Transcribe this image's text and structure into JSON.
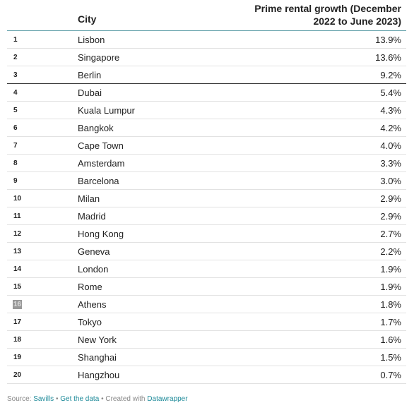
{
  "table": {
    "header": {
      "rank": "",
      "city": "City",
      "value": "Prime rental growth (December 2022 to June 2023)"
    },
    "rows": [
      [
        "1",
        "Lisbon",
        "13.9%"
      ],
      [
        "2",
        "Singapore",
        "13.6%"
      ],
      [
        "3",
        "Berlin",
        "9.2%"
      ],
      [
        "4",
        "Dubai",
        "5.4%"
      ],
      [
        "5",
        "Kuala Lumpur",
        "4.3%"
      ],
      [
        "6",
        "Bangkok",
        "4.2%"
      ],
      [
        "7",
        "Cape Town",
        "4.0%"
      ],
      [
        "8",
        "Amsterdam",
        "3.3%"
      ],
      [
        "9",
        "Barcelona",
        "3.0%"
      ],
      [
        "10",
        "Milan",
        "2.9%"
      ],
      [
        "11",
        "Madrid",
        "2.9%"
      ],
      [
        "12",
        "Hong Kong",
        "2.7%"
      ],
      [
        "13",
        "Geneva",
        "2.2%"
      ],
      [
        "14",
        "London",
        "1.9%"
      ],
      [
        "15",
        "Rome",
        "1.9%"
      ],
      [
        "16",
        "Athens",
        "1.8%"
      ],
      [
        "17",
        "Tokyo",
        "1.7%"
      ],
      [
        "18",
        "New York",
        "1.6%"
      ],
      [
        "19",
        "Shanghai",
        "1.5%"
      ],
      [
        "20",
        "Hangzhou",
        "0.7%"
      ]
    ]
  },
  "footer": {
    "source_label": "Source:",
    "source": "Savills",
    "separator": "•",
    "get_data": "Get the data",
    "created_with": "Created with",
    "tool": "Datawrapper"
  }
}
